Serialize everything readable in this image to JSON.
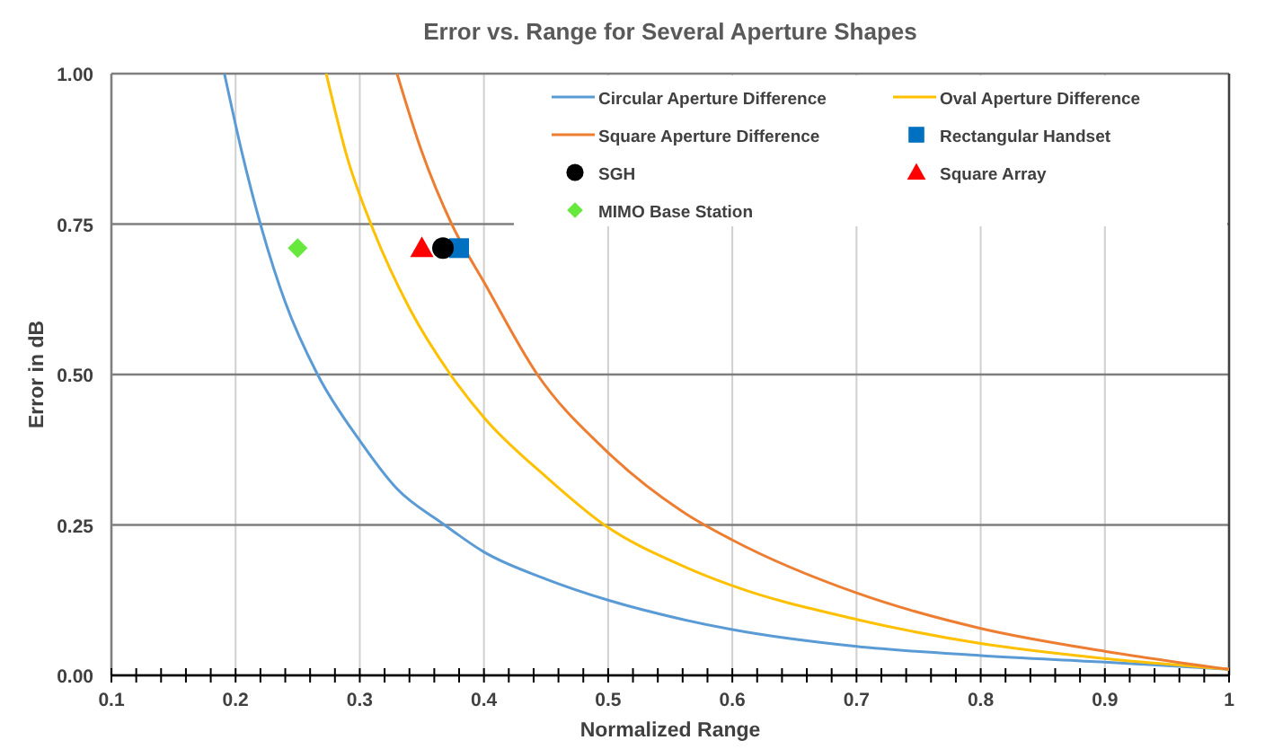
{
  "chart_data": {
    "type": "line",
    "title": "Error vs. Range for Several Aperture Shapes",
    "xlabel": "Normalized Range",
    "ylabel": "Error in dB",
    "xlim": [
      0.1,
      1
    ],
    "ylim": [
      0,
      1
    ],
    "xticks": [
      0.1,
      {
        "value": 0.12,
        "label": null
      },
      {
        "value": 0.14,
        "label": null
      },
      {
        "value": 0.16,
        "label": null
      },
      {
        "value": 0.18,
        "label": null
      },
      0.2,
      {
        "value": 0.22,
        "label": null
      },
      {
        "value": 0.24,
        "label": null
      },
      {
        "value": 0.26,
        "label": null
      },
      {
        "value": 0.28,
        "label": null
      },
      0.3,
      {
        "value": 0.32,
        "label": null
      },
      {
        "value": 0.34,
        "label": null
      },
      {
        "value": 0.36,
        "label": null
      },
      {
        "value": 0.38,
        "label": null
      },
      0.4,
      {
        "value": 0.42,
        "label": null
      },
      {
        "value": 0.44,
        "label": null
      },
      {
        "value": 0.46,
        "label": null
      },
      {
        "value": 0.48,
        "label": null
      },
      0.5,
      {
        "value": 0.52,
        "label": null
      },
      {
        "value": 0.54,
        "label": null
      },
      {
        "value": 0.56,
        "label": null
      },
      {
        "value": 0.58,
        "label": null
      },
      0.6,
      {
        "value": 0.62,
        "label": null
      },
      {
        "value": 0.64,
        "label": null
      },
      {
        "value": 0.66,
        "label": null
      },
      {
        "value": 0.68,
        "label": null
      },
      0.7,
      {
        "value": 0.72,
        "label": null
      },
      {
        "value": 0.74,
        "label": null
      },
      {
        "value": 0.76,
        "label": null
      },
      {
        "value": 0.78,
        "label": null
      },
      0.8,
      {
        "value": 0.82,
        "label": null
      },
      {
        "value": 0.84,
        "label": null
      },
      {
        "value": 0.86,
        "label": null
      },
      {
        "value": 0.88,
        "label": null
      },
      0.9,
      {
        "value": 0.92,
        "label": null
      },
      {
        "value": 0.94,
        "label": null
      },
      {
        "value": 0.96,
        "label": null
      },
      {
        "value": 0.98,
        "label": null
      },
      1
    ],
    "yticks": [
      {
        "value": 0,
        "label": "0.00"
      },
      {
        "value": 0.25,
        "label": "0.25"
      },
      {
        "value": 0.5,
        "label": "0.50"
      },
      {
        "value": 0.75,
        "label": "0.75"
      },
      {
        "value": 1,
        "label": "1.00"
      }
    ],
    "grid": true,
    "legend": "top right",
    "line_style": "solid",
    "series": [
      {
        "name": "Circular Aperture Difference",
        "color": "#5b9bd5",
        "x": [
          0.191,
          0.205,
          0.22,
          0.24,
          0.266,
          0.3,
          0.33,
          0.367,
          0.4,
          0.45,
          0.5,
          0.56,
          0.6,
          0.7,
          0.8,
          0.9,
          1
        ],
        "values": [
          1,
          0.87,
          0.75,
          0.62,
          0.5,
          0.39,
          0.31,
          0.252,
          0.205,
          0.16,
          0.125,
          0.093,
          0.076,
          0.048,
          0.033,
          0.022,
          0.01
        ]
      },
      {
        "name": "Oval Aperture Difference",
        "color": "#ffc000",
        "x": [
          0.273,
          0.29,
          0.309,
          0.34,
          0.373,
          0.401,
          0.45,
          0.497,
          0.56,
          0.6,
          0.7,
          0.8,
          0.9,
          1
        ],
        "values": [
          1,
          0.86,
          0.75,
          0.61,
          0.5,
          0.426,
          0.33,
          0.25,
          0.182,
          0.149,
          0.093,
          0.053,
          0.028,
          0.01
        ]
      },
      {
        "name": "Square Aperture Difference",
        "color": "#ed7d31",
        "x": [
          0.33,
          0.35,
          0.374,
          0.401,
          0.443,
          0.497,
          0.56,
          0.6,
          0.7,
          0.8,
          0.9,
          1
        ],
        "values": [
          1,
          0.87,
          0.75,
          0.65,
          0.5,
          0.376,
          0.272,
          0.225,
          0.137,
          0.078,
          0.04,
          0.01
        ]
      },
      {
        "name": "Rectangular Handset",
        "type": "scatter",
        "marker": "square",
        "color": "#0070c0",
        "x": [
          0.38
        ],
        "values": [
          0.71
        ]
      },
      {
        "name": "SGH",
        "type": "scatter",
        "marker": "circle",
        "color": "#000000",
        "x": [
          0.367
        ],
        "values": [
          0.71
        ]
      },
      {
        "name": "Square Array",
        "type": "scatter",
        "marker": "triangle",
        "color": "#ff0000",
        "x": [
          0.35
        ],
        "values": [
          0.71
        ]
      },
      {
        "name": "MIMO Base Station",
        "type": "scatter",
        "marker": "diamond",
        "color": "#66e83c",
        "x": [
          0.25
        ],
        "values": [
          0.71
        ]
      }
    ]
  }
}
